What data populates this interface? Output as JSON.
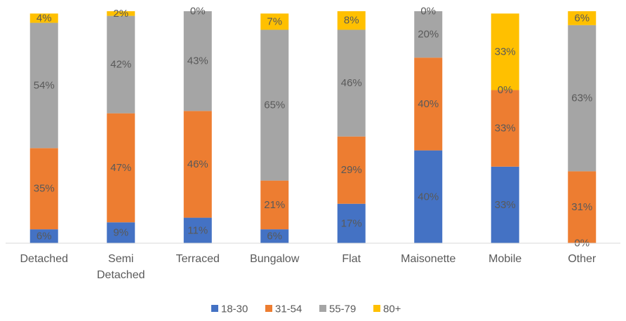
{
  "chart_data": {
    "type": "bar",
    "stacked": true,
    "normalized": true,
    "categories": [
      "Detached",
      "Semi Detached",
      "Terraced",
      "Bungalow",
      "Flat",
      "Maisonette",
      "Mobile",
      "Other"
    ],
    "series": [
      {
        "name": "18-30",
        "color": "#4472C4",
        "values": [
          6,
          9,
          11,
          6,
          17,
          40,
          33,
          0
        ],
        "labels": [
          "6%",
          "9%",
          "11%",
          "6%",
          "17%",
          "40%",
          "33%",
          "0%"
        ]
      },
      {
        "name": "31-54",
        "color": "#ED7D31",
        "values": [
          35,
          47,
          46,
          21,
          29,
          40,
          33,
          31
        ],
        "labels": [
          "35%",
          "47%",
          "46%",
          "21%",
          "29%",
          "40%",
          "33%",
          "31%"
        ]
      },
      {
        "name": "55-79",
        "color": "#A5A5A5",
        "values": [
          54,
          42,
          43,
          65,
          46,
          20,
          0,
          63
        ],
        "labels": [
          "54%",
          "42%",
          "43%",
          "65%",
          "46%",
          "20%",
          "0%",
          "63%"
        ]
      },
      {
        "name": "80+",
        "color": "#FFC000",
        "values": [
          4,
          2,
          0,
          7,
          8,
          0,
          33,
          6
        ],
        "labels": [
          "4%",
          "2%",
          "0%",
          "7%",
          "8%",
          "0%",
          "33%",
          "6%"
        ]
      }
    ],
    "legend_position": "bottom",
    "grid": false,
    "ylim": [
      0,
      100
    ],
    "title": "",
    "xlabel": "",
    "ylabel": ""
  }
}
